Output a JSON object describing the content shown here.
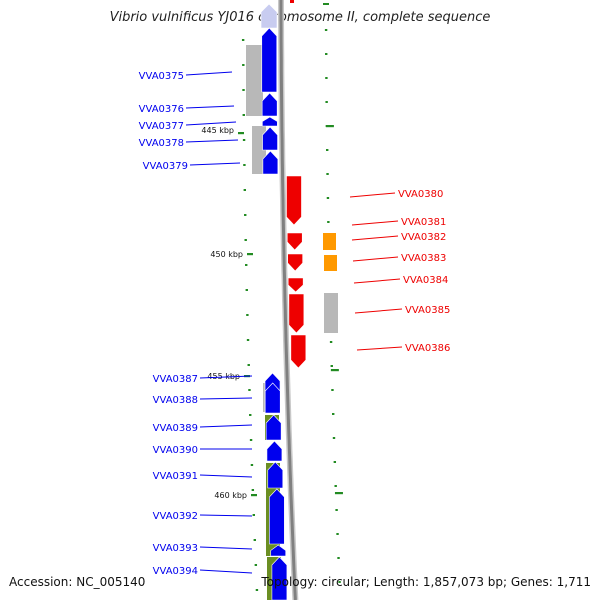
{
  "title": "Vibrio vulnificus YJ016 chromosome II, complete sequence",
  "footer": {
    "accession": "Accession: NC_005140",
    "topology": "Topology: circular; Length: 1,857,073 bp; Genes: 1,711"
  },
  "colors": {
    "forward_strand": "#0000ee",
    "reverse_strand": "#ee0000",
    "orange_feature": "#ff9900",
    "gray_feature": "#b8b8b8",
    "olive_feature": "#6b8e23",
    "scale_ticks": "#228b22",
    "backbone": "#808080"
  },
  "ticks": [
    {
      "label": "445 kbp"
    },
    {
      "label": "450 kbp"
    },
    {
      "label": "455 kbp"
    },
    {
      "label": "460 kbp"
    }
  ],
  "genes": [
    {
      "name": "VVA0375",
      "strand": "forward"
    },
    {
      "name": "VVA0376",
      "strand": "forward"
    },
    {
      "name": "VVA0377",
      "strand": "forward"
    },
    {
      "name": "VVA0378",
      "strand": "forward"
    },
    {
      "name": "VVA0379",
      "strand": "forward"
    },
    {
      "name": "VVA0380",
      "strand": "reverse"
    },
    {
      "name": "VVA0381",
      "strand": "reverse"
    },
    {
      "name": "VVA0382",
      "strand": "reverse"
    },
    {
      "name": "VVA0383",
      "strand": "reverse"
    },
    {
      "name": "VVA0384",
      "strand": "reverse"
    },
    {
      "name": "VVA0385",
      "strand": "reverse"
    },
    {
      "name": "VVA0386",
      "strand": "reverse"
    },
    {
      "name": "VVA0387",
      "strand": "forward"
    },
    {
      "name": "VVA0388",
      "strand": "forward"
    },
    {
      "name": "VVA0389",
      "strand": "forward"
    },
    {
      "name": "VVA0390",
      "strand": "forward"
    },
    {
      "name": "VVA0391",
      "strand": "forward"
    },
    {
      "name": "VVA0392",
      "strand": "forward"
    },
    {
      "name": "VVA0393",
      "strand": "forward"
    },
    {
      "name": "VVA0394",
      "strand": "forward"
    }
  ]
}
